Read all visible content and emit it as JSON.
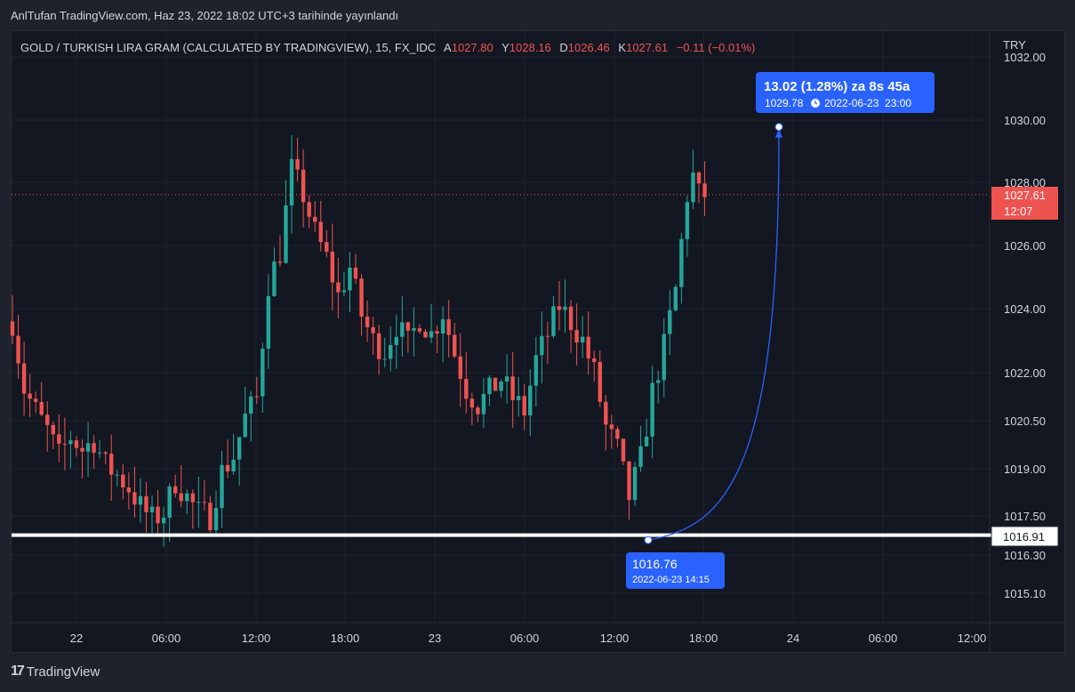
{
  "header": {
    "published": "AnlTufan TradingView.com, Haz 23, 2022 18:02 UTC+3 tarihinde yayınlandı"
  },
  "legend": {
    "symbol": "GOLD / TURKISH LIRA GRAM (CALCULATED BY TRADINGVIEW), 15, FX_IDC",
    "o_label": "A",
    "o_value": "1027.80",
    "h_label": "Y",
    "h_value": "1028.16",
    "l_label": "D",
    "l_value": "1026.46",
    "c_label": "K",
    "c_value": "1027.61",
    "change": "−0.11 (−0.01%)"
  },
  "colors": {
    "up": "#26a69a",
    "down": "#ef5350",
    "accent": "#2962ff",
    "bg": "#131722"
  },
  "price_axis": {
    "currency": "TRY",
    "current_price": "1027.61",
    "countdown": "12:07",
    "support_price": "1016.91"
  },
  "annotations": {
    "start_price": "1016.76",
    "start_time": "2022-06-23 14:15",
    "target_change": "13.02 (1.28%) za 8s 45a",
    "target_price": "1029.78",
    "target_time": "2022-06-23  23:00"
  },
  "footer": {
    "brand": "TradingView",
    "logo_text": "17"
  },
  "chart_data": {
    "type": "candlestick",
    "title": "GOLD / TURKISH LIRA GRAM (CALCULATED BY TRADINGVIEW), 15, FX_IDC",
    "interval": "15",
    "y_ticks": [
      "1032.00",
      "1030.00",
      "1028.00",
      "1026.00",
      "1024.00",
      "1022.00",
      "1020.50",
      "1019.00",
      "1017.50",
      "1016.30",
      "1015.10"
    ],
    "x_ticks": [
      "22",
      "06:00",
      "12:00",
      "18:00",
      "23",
      "06:00",
      "12:00",
      "18:00",
      "24",
      "06:00",
      "12:00"
    ],
    "current_price": 1027.61,
    "horizontal_line": 1016.91,
    "projection": {
      "from": {
        "time": "2022-06-23 14:15",
        "price": 1016.76
      },
      "to": {
        "time": "2022-06-23 23:00",
        "price": 1029.78
      }
    },
    "close_path": [
      [
        0,
        1023.6
      ],
      [
        8,
        1021.5
      ],
      [
        16,
        1020.8
      ],
      [
        24,
        1020.2
      ],
      [
        32,
        1019.4
      ],
      [
        40,
        1020.0
      ],
      [
        48,
        1019.6
      ],
      [
        56,
        1019.9
      ],
      [
        64,
        1019.1
      ],
      [
        72,
        1018.8
      ],
      [
        80,
        1018.4
      ],
      [
        88,
        1017.8
      ],
      [
        96,
        1017.4
      ],
      [
        104,
        1017.6
      ],
      [
        112,
        1018.6
      ],
      [
        120,
        1018.1
      ],
      [
        128,
        1017.6
      ],
      [
        136,
        1017.5
      ],
      [
        144,
        1018.9
      ],
      [
        152,
        1019.4
      ],
      [
        160,
        1020.6
      ],
      [
        168,
        1021.2
      ],
      [
        176,
        1024.8
      ],
      [
        184,
        1025.8
      ],
      [
        192,
        1028.4
      ],
      [
        200,
        1027.6
      ],
      [
        208,
        1026.4
      ],
      [
        216,
        1025.6
      ],
      [
        224,
        1024.4
      ],
      [
        232,
        1025.3
      ],
      [
        240,
        1023.8
      ],
      [
        248,
        1023.0
      ],
      [
        256,
        1022.7
      ],
      [
        264,
        1023.5
      ],
      [
        272,
        1022.9
      ],
      [
        280,
        1023.7
      ],
      [
        288,
        1023.2
      ],
      [
        296,
        1023.9
      ],
      [
        304,
        1022.6
      ],
      [
        312,
        1021.5
      ],
      [
        320,
        1021.0
      ],
      [
        328,
        1021.4
      ],
      [
        336,
        1021.8
      ],
      [
        344,
        1021.2
      ],
      [
        352,
        1020.8
      ],
      [
        360,
        1022.4
      ],
      [
        368,
        1023.2
      ],
      [
        376,
        1024.1
      ],
      [
        384,
        1023.6
      ],
      [
        392,
        1023.0
      ],
      [
        400,
        1022.0
      ],
      [
        408,
        1020.3
      ],
      [
        416,
        1019.6
      ],
      [
        424,
        1018.1
      ],
      [
        432,
        1019.3
      ],
      [
        440,
        1021.4
      ],
      [
        448,
        1022.8
      ],
      [
        456,
        1024.6
      ],
      [
        464,
        1027.6
      ],
      [
        468,
        1028.2
      ],
      [
        472,
        1027.6
      ],
      [
        476,
        1027.61
      ]
    ]
  }
}
